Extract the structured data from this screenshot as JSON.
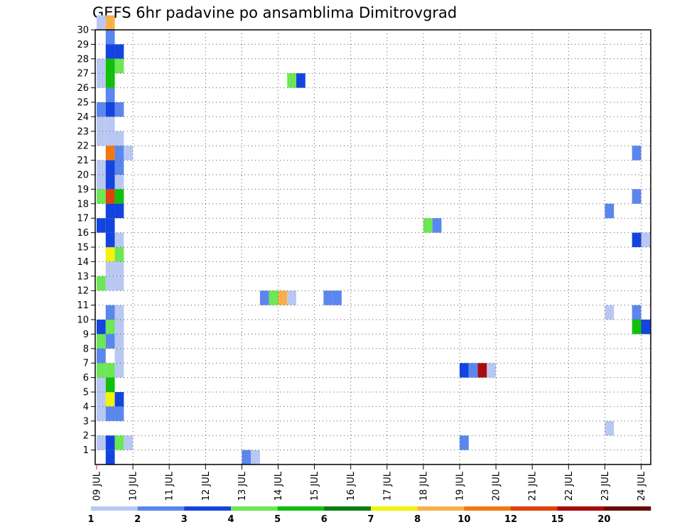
{
  "chart_data": {
    "type": "heatmap",
    "title": "GEFS 6hr padavine po ansamblima Dimitrovgrad",
    "xlabel": "",
    "ylabel": "",
    "x_ticks": [
      "09 JUL",
      "10 JUL",
      "11 JUL",
      "12 JUL",
      "13 JUL",
      "14 JUL",
      "15 JUL",
      "16 JUL",
      "17 JUL",
      "18 JUL",
      "19 JUL",
      "20 JUL",
      "21 JUL",
      "22 JUL",
      "23 JUL",
      "24 JUL"
    ],
    "y_ticks": [
      "1",
      "2",
      "3",
      "4",
      "5",
      "6",
      "7",
      "8",
      "9",
      "10",
      "11",
      "12",
      "13",
      "14",
      "15",
      "16",
      "17",
      "18",
      "19",
      "20",
      "21",
      "22",
      "23",
      "24",
      "25",
      "26",
      "27",
      "28",
      "29",
      "30"
    ],
    "ylim": [
      0,
      30
    ],
    "steps_per_day": 4,
    "grid": true,
    "colorbar": {
      "labels": [
        "1",
        "2",
        "3",
        "4",
        "5",
        "6",
        "7",
        "8",
        "10",
        "12",
        "15",
        "20"
      ],
      "colors": [
        "#b9c8f2",
        "#5b86ee",
        "#1444e0",
        "#6ce755",
        "#10c00c",
        "#0a7d12",
        "#f2f20c",
        "#f8b04a",
        "#f07a10",
        "#e0400c",
        "#a80c0c",
        "#6a0808"
      ]
    },
    "cells": [
      [
        0,
        30,
        0
      ],
      [
        1,
        30,
        7
      ],
      [
        1,
        29,
        1
      ],
      [
        1,
        28,
        2
      ],
      [
        2,
        28,
        2
      ],
      [
        0,
        27,
        0
      ],
      [
        1,
        27,
        4
      ],
      [
        2,
        27,
        3
      ],
      [
        0,
        26,
        0
      ],
      [
        1,
        26,
        4
      ],
      [
        21,
        26,
        3
      ],
      [
        22,
        26,
        2
      ],
      [
        1,
        25,
        1
      ],
      [
        0,
        24,
        1
      ],
      [
        1,
        24,
        2
      ],
      [
        2,
        24,
        1
      ],
      [
        0,
        23,
        0
      ],
      [
        1,
        23,
        0
      ],
      [
        0,
        22,
        0
      ],
      [
        1,
        22,
        0
      ],
      [
        2,
        22,
        0
      ],
      [
        1,
        21,
        8
      ],
      [
        2,
        21,
        1
      ],
      [
        3,
        21,
        0
      ],
      [
        59,
        21,
        1
      ],
      [
        0,
        20,
        0
      ],
      [
        1,
        20,
        2
      ],
      [
        2,
        20,
        1
      ],
      [
        0,
        19,
        0
      ],
      [
        1,
        19,
        2
      ],
      [
        2,
        19,
        0
      ],
      [
        0,
        18,
        3
      ],
      [
        1,
        18,
        9
      ],
      [
        2,
        18,
        4
      ],
      [
        59,
        18,
        1
      ],
      [
        1,
        17,
        2
      ],
      [
        2,
        17,
        2
      ],
      [
        56,
        17,
        1
      ],
      [
        0,
        16,
        2
      ],
      [
        1,
        16,
        2
      ],
      [
        36,
        16,
        3
      ],
      [
        37,
        16,
        1
      ],
      [
        1,
        15,
        2
      ],
      [
        2,
        15,
        0
      ],
      [
        59,
        15,
        2
      ],
      [
        60,
        15,
        0
      ],
      [
        1,
        14,
        6
      ],
      [
        2,
        14,
        3
      ],
      [
        1,
        13,
        0
      ],
      [
        2,
        13,
        0
      ],
      [
        0,
        12,
        3
      ],
      [
        1,
        12,
        0
      ],
      [
        2,
        12,
        0
      ],
      [
        18,
        11,
        1
      ],
      [
        19,
        11,
        3
      ],
      [
        20,
        11,
        7
      ],
      [
        21,
        11,
        0
      ],
      [
        25,
        11,
        1
      ],
      [
        26,
        11,
        1
      ],
      [
        1,
        10,
        1
      ],
      [
        2,
        10,
        0
      ],
      [
        56,
        10,
        0
      ],
      [
        59,
        10,
        1
      ],
      [
        0,
        9,
        2
      ],
      [
        1,
        9,
        3
      ],
      [
        2,
        9,
        0
      ],
      [
        59,
        9,
        4
      ],
      [
        60,
        9,
        2
      ],
      [
        0,
        8,
        3
      ],
      [
        1,
        8,
        1
      ],
      [
        2,
        8,
        0
      ],
      [
        0,
        7,
        1
      ],
      [
        2,
        7,
        0
      ],
      [
        0,
        6,
        3
      ],
      [
        1,
        6,
        3
      ],
      [
        2,
        6,
        0
      ],
      [
        40,
        6,
        2
      ],
      [
        41,
        6,
        1
      ],
      [
        42,
        6,
        10
      ],
      [
        43,
        6,
        0
      ],
      [
        0,
        5,
        0
      ],
      [
        1,
        5,
        4
      ],
      [
        0,
        4,
        0
      ],
      [
        1,
        4,
        6
      ],
      [
        2,
        4,
        2
      ],
      [
        0,
        3,
        0
      ],
      [
        1,
        3,
        1
      ],
      [
        2,
        3,
        1
      ],
      [
        56,
        2,
        0
      ],
      [
        0,
        1,
        0
      ],
      [
        1,
        1,
        2
      ],
      [
        2,
        1,
        3
      ],
      [
        3,
        1,
        0
      ],
      [
        40,
        1,
        1
      ],
      [
        1,
        0,
        2
      ],
      [
        16,
        0,
        1
      ],
      [
        17,
        0,
        0
      ]
    ]
  }
}
